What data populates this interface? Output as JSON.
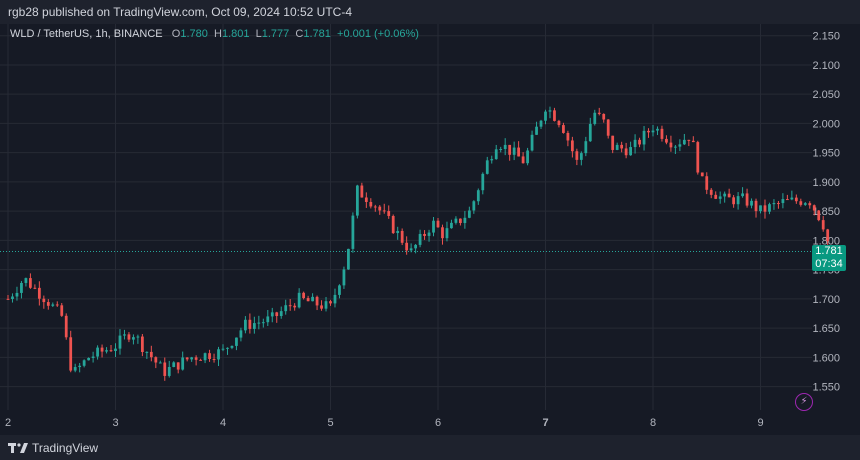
{
  "header": {
    "published": "rgb28 published on TradingView.com, Oct 09, 2024 10:52 UTC-4"
  },
  "legend": {
    "symbol": "WLD / TetherUS, 1h, BINANCE",
    "o_label": "O",
    "o_value": "1.780",
    "h_label": "H",
    "h_value": "1.801",
    "l_label": "L",
    "l_value": "1.777",
    "c_label": "C",
    "c_value": "1.781",
    "change": "+0.001 (+0.06%)"
  },
  "price_badge": {
    "price": "1.781",
    "countdown": "07:34"
  },
  "footer": {
    "brand": "TradingView"
  },
  "colors": {
    "up": "#26a69a",
    "down": "#ef5350",
    "badge": "#089981",
    "background": "#161a25",
    "grid": "#262a35"
  },
  "chart_data": {
    "type": "candlestick",
    "title": "WLD / TetherUS, 1h, BINANCE",
    "y_ticks": [
      "2.150",
      "2.100",
      "2.050",
      "2.000",
      "1.950",
      "1.900",
      "1.850",
      "1.800",
      "1.750",
      "1.700",
      "1.650",
      "1.600",
      "1.550"
    ],
    "ylim": [
      1.51,
      2.17
    ],
    "x_ticks": [
      {
        "label": "2",
        "day": 2
      },
      {
        "label": "3",
        "day": 3
      },
      {
        "label": "4",
        "day": 4
      },
      {
        "label": "5",
        "day": 5
      },
      {
        "label": "6",
        "day": 6
      },
      {
        "label": "7",
        "day": 7
      },
      {
        "label": "8",
        "day": 8
      },
      {
        "label": "9",
        "day": 9
      }
    ],
    "xlim": [
      2.0,
      9.78
    ],
    "last_price": 1.781,
    "anchors": [
      [
        2.0,
        1.7
      ],
      [
        2.15,
        1.735
      ],
      [
        2.35,
        1.7
      ],
      [
        2.5,
        1.67
      ],
      [
        2.6,
        1.57
      ],
      [
        2.75,
        1.6
      ],
      [
        3.0,
        1.62
      ],
      [
        3.15,
        1.645
      ],
      [
        3.25,
        1.62
      ],
      [
        3.45,
        1.575
      ],
      [
        3.7,
        1.6
      ],
      [
        4.0,
        1.61
      ],
      [
        4.2,
        1.655
      ],
      [
        4.45,
        1.665
      ],
      [
        4.7,
        1.7
      ],
      [
        5.0,
        1.685
      ],
      [
        5.15,
        1.77
      ],
      [
        5.25,
        1.885
      ],
      [
        5.4,
        1.865
      ],
      [
        5.55,
        1.83
      ],
      [
        5.75,
        1.78
      ],
      [
        5.95,
        1.83
      ],
      [
        6.05,
        1.81
      ],
      [
        6.3,
        1.85
      ],
      [
        6.45,
        1.93
      ],
      [
        6.55,
        1.97
      ],
      [
        6.8,
        1.935
      ],
      [
        7.0,
        2.03
      ],
      [
        7.15,
        2.0
      ],
      [
        7.3,
        1.93
      ],
      [
        7.45,
        2.02
      ],
      [
        7.55,
        2.0
      ],
      [
        7.6,
        1.96
      ],
      [
        7.8,
        1.955
      ],
      [
        8.0,
        1.995
      ],
      [
        8.2,
        1.965
      ],
      [
        8.35,
        1.98
      ],
      [
        8.45,
        1.9
      ],
      [
        8.65,
        1.87
      ],
      [
        8.85,
        1.87
      ],
      [
        9.0,
        1.85
      ],
      [
        9.2,
        1.865
      ],
      [
        9.45,
        1.87
      ],
      [
        9.58,
        1.83
      ],
      [
        9.65,
        1.781
      ]
    ]
  }
}
